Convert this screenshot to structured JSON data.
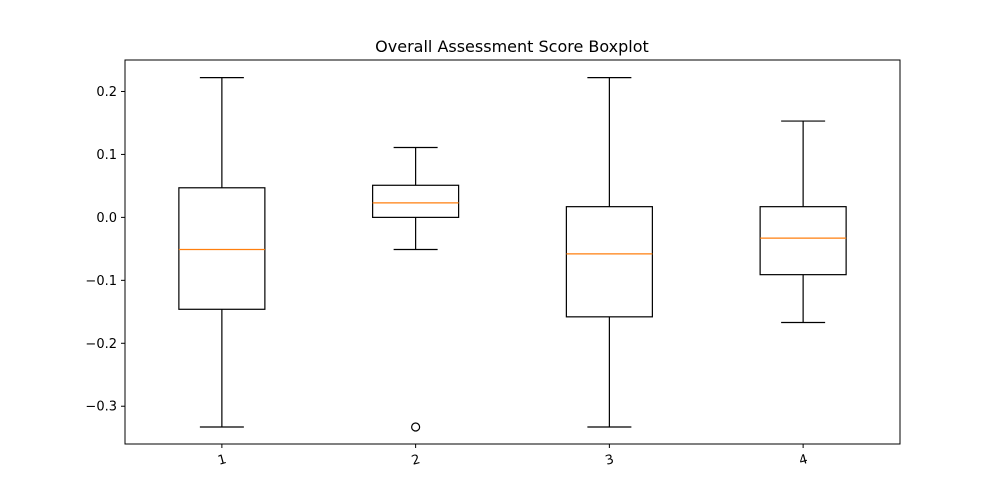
{
  "chart_data": {
    "type": "boxplot",
    "title": "Overall Assessment Score Boxplot",
    "xlabel": "",
    "ylabel": "",
    "categories": [
      "1",
      "2",
      "3",
      "4"
    ],
    "ylim": [
      -0.36,
      0.25
    ],
    "yticks": [
      {
        "value": 0.2,
        "label": "0.2"
      },
      {
        "value": 0.1,
        "label": "0.1"
      },
      {
        "value": 0.0,
        "label": "0.0"
      },
      {
        "value": -0.1,
        "label": "−0.1"
      },
      {
        "value": -0.2,
        "label": "−0.2"
      },
      {
        "value": -0.3,
        "label": "−0.3"
      }
    ],
    "boxes": [
      {
        "category": "1",
        "whisker_low": -0.333,
        "q1": -0.146,
        "median": -0.051,
        "q3": 0.047,
        "whisker_high": 0.222,
        "outliers": []
      },
      {
        "category": "2",
        "whisker_low": -0.051,
        "q1": 0.0,
        "median": 0.023,
        "q3": 0.051,
        "whisker_high": 0.111,
        "outliers": [
          -0.333
        ]
      },
      {
        "category": "3",
        "whisker_low": -0.333,
        "q1": -0.158,
        "median": -0.058,
        "q3": 0.017,
        "whisker_high": 0.222,
        "outliers": []
      },
      {
        "category": "4",
        "whisker_low": -0.167,
        "q1": -0.091,
        "median": -0.033,
        "q3": 0.017,
        "whisker_high": 0.153,
        "outliers": []
      }
    ],
    "grid": false,
    "x_tick_rotation_deg": -15,
    "colors": {
      "box": "#000000",
      "median": "#ff7f0e",
      "outlier": "#000000",
      "background": "#ffffff"
    }
  }
}
